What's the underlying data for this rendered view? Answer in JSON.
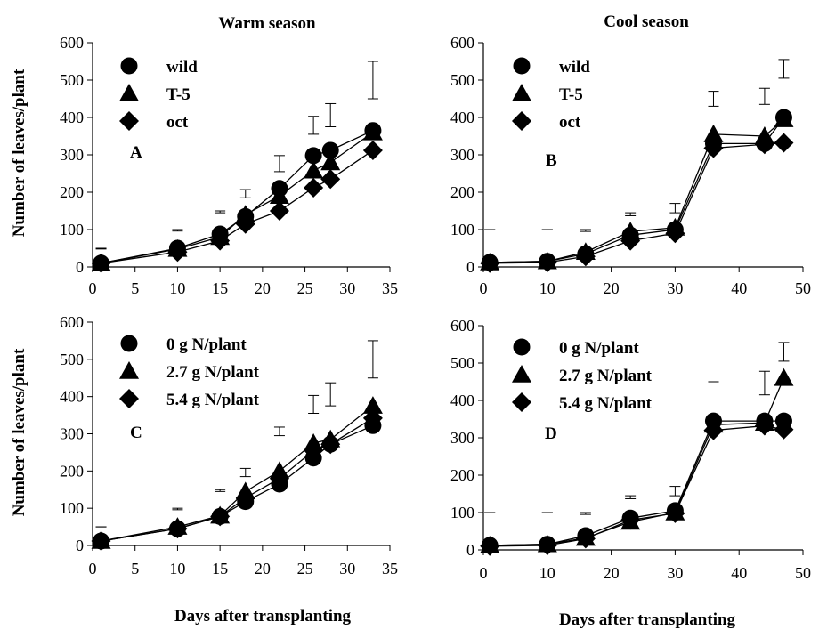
{
  "figure": {
    "column_titles": [
      "Warm season",
      "Cool season"
    ],
    "ylabel_top": "Number of leaves/plant",
    "ylabel_bottom": "Number of leaves/plant",
    "xlabel_left": "Days after transplanting",
    "xlabel_right": "Days after transplanting"
  },
  "chart_data": [
    {
      "type": "line",
      "panel_label": "A",
      "x": [
        1,
        10,
        15,
        18,
        22,
        26,
        28,
        33
      ],
      "xlim": [
        0,
        35
      ],
      "xticks": [
        0,
        5,
        10,
        15,
        20,
        25,
        30,
        35
      ],
      "ylim": [
        0,
        600
      ],
      "yticks": [
        0,
        100,
        200,
        300,
        400,
        500,
        600
      ],
      "legend": "top-left",
      "series": [
        {
          "name": "wild",
          "marker": "circle",
          "values": [
            10,
            50,
            88,
            135,
            210,
            298,
            312,
            365
          ]
        },
        {
          "name": "T-5",
          "marker": "triangle",
          "values": [
            10,
            48,
            80,
            140,
            190,
            258,
            280,
            360
          ]
        },
        {
          "name": "oct",
          "marker": "diamond",
          "values": [
            10,
            40,
            70,
            115,
            150,
            212,
            235,
            312
          ]
        }
      ],
      "error_bars": [
        {
          "x": 1,
          "low": 48,
          "high": 50
        },
        {
          "x": 10,
          "low": 96,
          "high": 100
        },
        {
          "x": 15,
          "low": 145,
          "high": 150
        },
        {
          "x": 18,
          "low": 185,
          "high": 207
        },
        {
          "x": 22,
          "low": 255,
          "high": 298
        },
        {
          "x": 26,
          "low": 355,
          "high": 403
        },
        {
          "x": 28,
          "low": 375,
          "high": 437
        },
        {
          "x": 33,
          "low": 450,
          "high": 550
        }
      ]
    },
    {
      "type": "line",
      "panel_label": "B",
      "x": [
        1,
        10,
        16,
        23,
        30,
        36,
        44,
        47
      ],
      "xlim": [
        0,
        50
      ],
      "xticks": [
        0,
        10,
        20,
        30,
        40,
        50
      ],
      "ylim": [
        0,
        600
      ],
      "yticks": [
        0,
        100,
        200,
        300,
        400,
        500,
        600
      ],
      "legend": "top-left",
      "series": [
        {
          "name": "wild",
          "marker": "circle",
          "values": [
            12,
            15,
            35,
            85,
            100,
            330,
            330,
            400
          ]
        },
        {
          "name": "T-5",
          "marker": "triangle",
          "values": [
            12,
            15,
            40,
            95,
            105,
            355,
            350,
            395
          ]
        },
        {
          "name": "oct",
          "marker": "diamond",
          "values": [
            10,
            12,
            28,
            70,
            90,
            318,
            328,
            332
          ]
        }
      ],
      "error_bars": [
        {
          "x": 1,
          "low": 100,
          "high": 100
        },
        {
          "x": 10,
          "low": 100,
          "high": 100
        },
        {
          "x": 16,
          "low": 95,
          "high": 100
        },
        {
          "x": 23,
          "low": 137,
          "high": 145
        },
        {
          "x": 30,
          "low": 145,
          "high": 170
        },
        {
          "x": 36,
          "low": 430,
          "high": 470
        },
        {
          "x": 44,
          "low": 435,
          "high": 478
        },
        {
          "x": 47,
          "low": 505,
          "high": 555
        }
      ]
    },
    {
      "type": "line",
      "panel_label": "C",
      "x": [
        1,
        10,
        15,
        18,
        22,
        26,
        28,
        33
      ],
      "xlim": [
        0,
        35
      ],
      "xticks": [
        0,
        5,
        10,
        15,
        20,
        25,
        30,
        35
      ],
      "ylim": [
        0,
        600
      ],
      "yticks": [
        0,
        100,
        200,
        300,
        400,
        500,
        600
      ],
      "legend": "top-left",
      "series": [
        {
          "name": "0 g N/plant",
          "marker": "circle",
          "values": [
            12,
            45,
            78,
            118,
            165,
            235,
            272,
            322
          ]
        },
        {
          "name": "2.7 g N/plant",
          "marker": "triangle",
          "values": [
            12,
            50,
            80,
            145,
            200,
            275,
            285,
            375
          ]
        },
        {
          "name": "5.4 g N/plant",
          "marker": "diamond",
          "values": [
            12,
            45,
            78,
            128,
            180,
            255,
            272,
            342
          ]
        }
      ],
      "error_bars": [
        {
          "x": 1,
          "low": 50,
          "high": 50
        },
        {
          "x": 10,
          "low": 96,
          "high": 100
        },
        {
          "x": 15,
          "low": 145,
          "high": 150
        },
        {
          "x": 18,
          "low": 185,
          "high": 207
        },
        {
          "x": 22,
          "low": 295,
          "high": 318
        },
        {
          "x": 26,
          "low": 355,
          "high": 403
        },
        {
          "x": 28,
          "low": 375,
          "high": 437
        },
        {
          "x": 33,
          "low": 450,
          "high": 550
        }
      ]
    },
    {
      "type": "line",
      "panel_label": "D",
      "x": [
        1,
        10,
        16,
        23,
        30,
        36,
        44,
        47
      ],
      "xlim": [
        0,
        50
      ],
      "xticks": [
        0,
        10,
        20,
        30,
        40,
        50
      ],
      "ylim": [
        0,
        600
      ],
      "yticks": [
        0,
        100,
        200,
        300,
        400,
        500,
        600
      ],
      "legend": "top-left",
      "series": [
        {
          "name": "0 g N/plant",
          "marker": "circle",
          "values": [
            12,
            15,
            38,
            85,
            105,
            345,
            345,
            345
          ]
        },
        {
          "name": "2.7 g N/plant",
          "marker": "triangle",
          "values": [
            12,
            15,
            32,
            75,
            100,
            335,
            340,
            460
          ]
        },
        {
          "name": "5.4 g N/plant",
          "marker": "diamond",
          "values": [
            10,
            12,
            30,
            80,
            98,
            320,
            332,
            322
          ]
        }
      ],
      "error_bars": [
        {
          "x": 1,
          "low": 100,
          "high": 100
        },
        {
          "x": 10,
          "low": 100,
          "high": 100
        },
        {
          "x": 16,
          "low": 95,
          "high": 100
        },
        {
          "x": 23,
          "low": 137,
          "high": 145
        },
        {
          "x": 30,
          "low": 145,
          "high": 170
        },
        {
          "x": 36,
          "low": 450,
          "high": 450
        },
        {
          "x": 44,
          "low": 415,
          "high": 478
        },
        {
          "x": 47,
          "low": 505,
          "high": 555
        }
      ]
    }
  ]
}
